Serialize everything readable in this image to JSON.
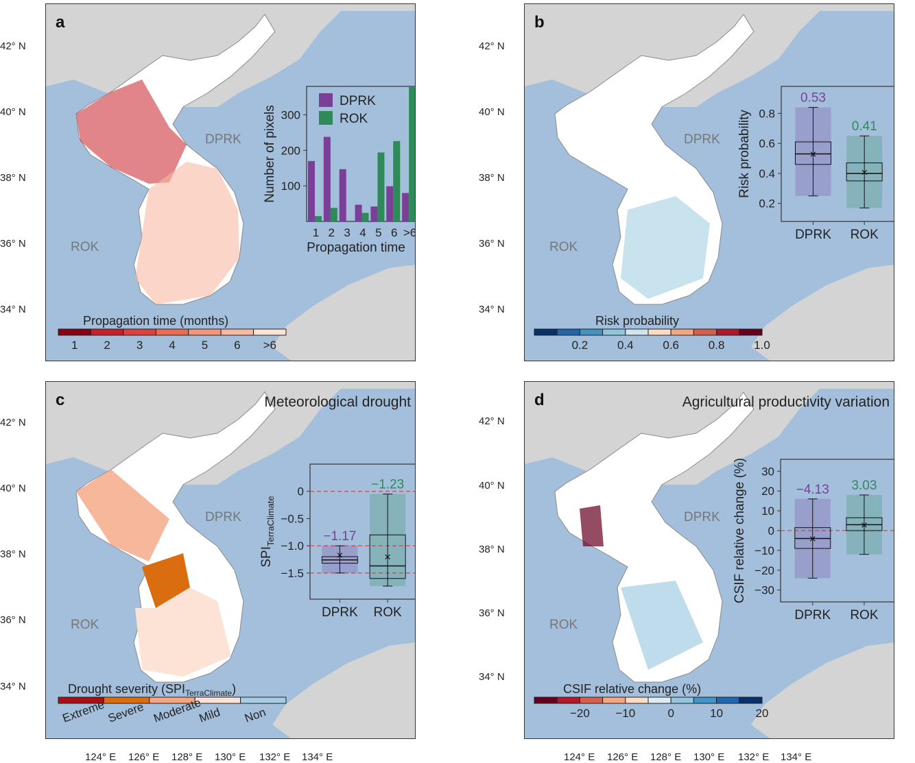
{
  "latitudes": [
    "42° N",
    "40° N",
    "38° N",
    "36° N",
    "34° N"
  ],
  "longitudes": [
    "124° E",
    "126° E",
    "128° E",
    "130° E",
    "132° E",
    "134° E"
  ],
  "colors": {
    "sea": "#a3bfdc",
    "land": "#ffffff",
    "dprk": "#7b3f98",
    "rok": "#2e8b57"
  },
  "panels": [
    {
      "letter": "a",
      "title": "",
      "dprk": "DPRK",
      "rok": "ROK",
      "colorbar": {
        "title": "Propagation time (months)",
        "labels": [
          "1",
          "2",
          "3",
          "4",
          "5",
          "6",
          ">6"
        ],
        "colors": [
          "#8b0012",
          "#c8202a",
          "#e0413a",
          "#ee6a50",
          "#f4957a",
          "#f8b9a2",
          "#fde3d6"
        ]
      }
    },
    {
      "letter": "b",
      "title": "",
      "dprk": "DPRK",
      "rok": "ROK",
      "colorbar": {
        "title": "Risk probability",
        "labels": [
          "0.2",
          "0.4",
          "0.6",
          "0.8",
          "1.0"
        ],
        "colors": [
          "#08306b",
          "#2166ac",
          "#4393c3",
          "#92c5de",
          "#d1e5f0",
          "#fddbc7",
          "#f4a582",
          "#d6604d",
          "#b2182b",
          "#67001f"
        ]
      }
    },
    {
      "letter": "c",
      "title": "Meteorological drought",
      "dprk": "DPRK",
      "rok": "ROK",
      "colorbar": {
        "title": "Drought severity (SPI",
        "title_sub": "TerraClimate",
        "title_end": ")",
        "labels": [
          "Extreme",
          "Severe",
          "Moderate",
          "Mild",
          "Non"
        ],
        "colors": [
          "#a50f15",
          "#d96d0f",
          "#f4a582",
          "#fde3d6",
          "#a6cee3"
        ]
      }
    },
    {
      "letter": "d",
      "title": "Agricultural productivity variation",
      "dprk": "DPRK",
      "rok": "ROK",
      "colorbar": {
        "title": "CSIF relative change (%)",
        "labels": [
          "−20",
          "−10",
          "0",
          "10",
          "20"
        ],
        "colors": [
          "#67001f",
          "#b2182b",
          "#d6604d",
          "#f4a582",
          "#fddbc7",
          "#e0ecf4",
          "#92c5de",
          "#4393c3",
          "#2166ac",
          "#08306b"
        ]
      }
    }
  ],
  "chart_data": [
    {
      "type": "bar",
      "panel": "a",
      "xlabel": "Propagation time",
      "ylabel": "Number of pixels",
      "categories": [
        "1",
        "2",
        "3",
        "4",
        "5",
        "6",
        ">6"
      ],
      "yticks": [
        "100",
        "200",
        "300"
      ],
      "ylim": [
        0,
        380
      ],
      "legend": [
        "DPRK",
        "ROK"
      ],
      "legend_position": "top-right",
      "series": [
        {
          "name": "DPRK",
          "values": [
            170,
            238,
            147,
            47,
            42,
            99,
            80
          ]
        },
        {
          "name": "ROK",
          "values": [
            15,
            38,
            0,
            24,
            194,
            226,
            378
          ]
        }
      ]
    },
    {
      "type": "box",
      "panel": "b",
      "ylabel": "Risk probability",
      "categories": [
        "DPRK",
        "ROK"
      ],
      "yticks": [
        "0.2",
        "0.4",
        "0.6",
        "0.8"
      ],
      "ylim": [
        0.08,
        0.98
      ],
      "means_label": [
        "0.53",
        "0.41"
      ],
      "boxes": [
        {
          "min": 0.25,
          "q1": 0.46,
          "median": 0.53,
          "q3": 0.61,
          "max": 0.84,
          "mean": 0.53
        },
        {
          "min": 0.17,
          "q1": 0.35,
          "median": 0.4,
          "q3": 0.47,
          "max": 0.65,
          "mean": 0.41
        }
      ]
    },
    {
      "type": "box",
      "panel": "c",
      "ylabel": "SPI",
      "ylabel_sub": "TerraClimate",
      "categories": [
        "DPRK",
        "ROK"
      ],
      "yticks": [
        "0",
        "−0.5",
        "−1.0",
        "−1.5"
      ],
      "ylim": [
        -1.98,
        0.5
      ],
      "means_label": [
        "−1.17",
        "−1.23"
      ],
      "reference_lines": [
        0,
        -1.0,
        -1.5
      ],
      "boxes": [
        {
          "min": -1.5,
          "q1": -1.32,
          "median": -1.26,
          "q3": -1.2,
          "max": -1.0,
          "mean": -1.17
        },
        {
          "min": -1.74,
          "q1": -1.6,
          "median": -1.37,
          "q3": -0.8,
          "max": -0.05,
          "mean": -1.2
        }
      ]
    },
    {
      "type": "box",
      "panel": "d",
      "ylabel": "CSIF relative change (%)",
      "categories": [
        "DPRK",
        "ROK"
      ],
      "yticks": [
        "30",
        "20",
        "10",
        "0",
        "−10",
        "−20",
        "−30"
      ],
      "ylim": [
        -36,
        36
      ],
      "means_label": [
        "−4.13",
        "3.03"
      ],
      "reference_lines": [
        0
      ],
      "boxes": [
        {
          "min": -24,
          "q1": -9,
          "median": -4,
          "q3": 1.5,
          "max": 16,
          "mean": -4
        },
        {
          "min": -12,
          "q1": 0,
          "median": 3,
          "q3": 6.5,
          "max": 18,
          "mean": 3
        }
      ]
    }
  ]
}
